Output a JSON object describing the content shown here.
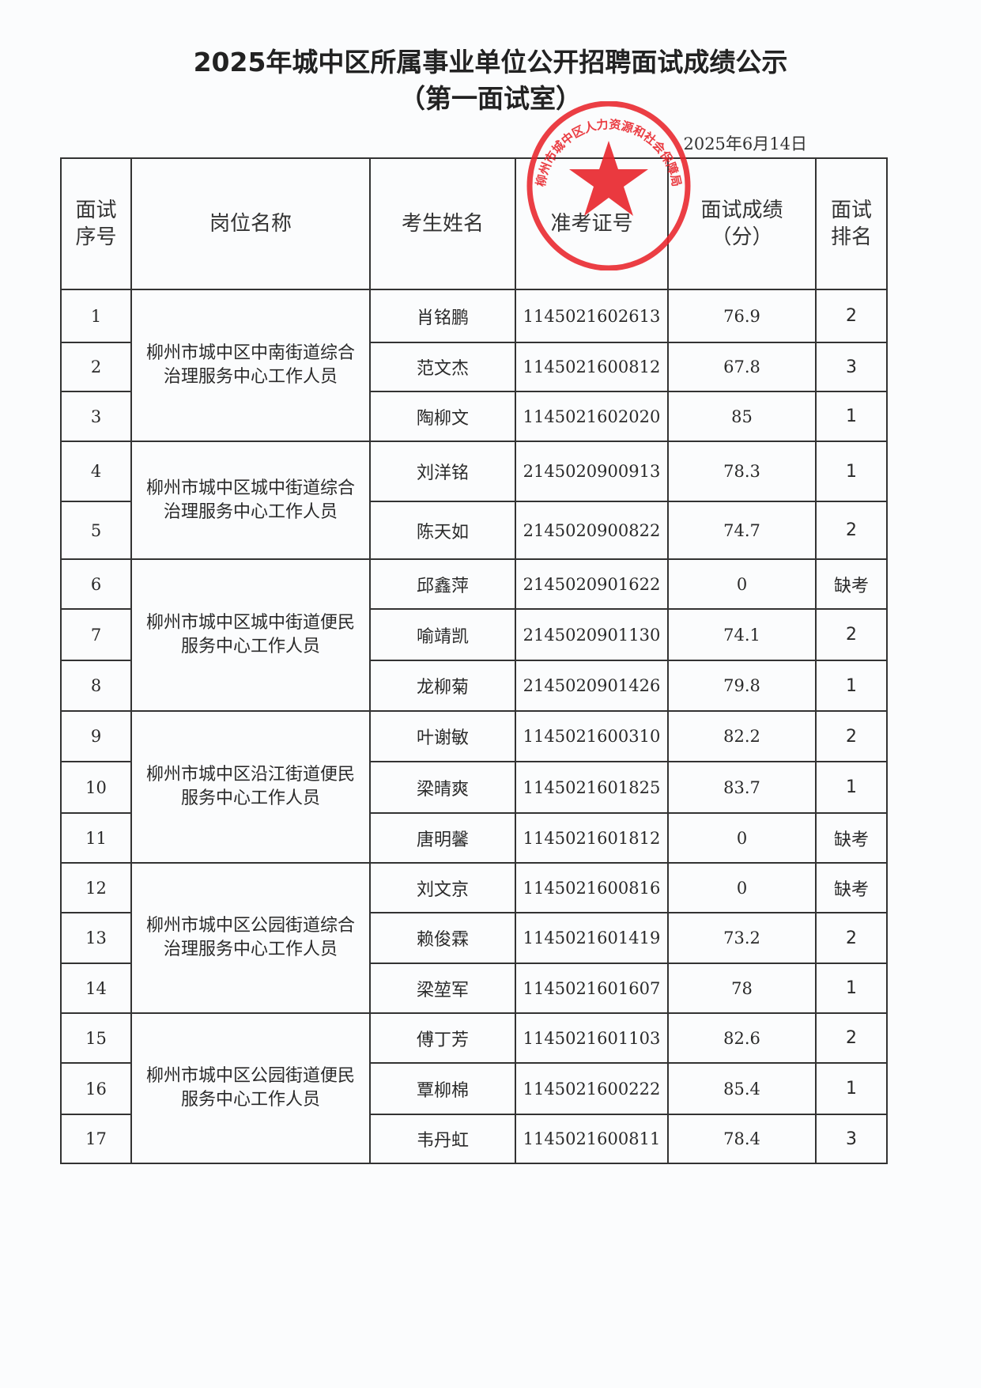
{
  "title": "2025年城中区所属事业单位公开招聘面试成绩公示",
  "subtitle": "（第一面试室）",
  "date": "2025年6月14日",
  "stamp": {
    "text": "柳州市城中区人力资源和社会保障局",
    "color": "#e8232a"
  },
  "headers": [
    "面试序号",
    "岗位名称",
    "考生姓名",
    "准考证号",
    "面试成绩（分）",
    "面试排名"
  ],
  "header_lines": {
    "seq": [
      "面试",
      "序号"
    ],
    "score": [
      "面试成绩",
      "（分）"
    ],
    "rank": [
      "面试",
      "排名"
    ]
  },
  "groups": [
    {
      "post": "柳州市城中区中南街道综合治理服务中心工作人员",
      "rows": [
        {
          "seq": "1",
          "name": "肖铭鹏",
          "id": "1145021602613",
          "score": "76.9",
          "rank": "2"
        },
        {
          "seq": "2",
          "name": "范文杰",
          "id": "1145021600812",
          "score": "67.8",
          "rank": "3"
        },
        {
          "seq": "3",
          "name": "陶柳文",
          "id": "1145021602020",
          "score": "85",
          "rank": "1"
        }
      ]
    },
    {
      "post": "柳州市城中区城中街道综合治理服务中心工作人员",
      "rows": [
        {
          "seq": "4",
          "name": "刘洋铭",
          "id": "2145020900913",
          "score": "78.3",
          "rank": "1"
        },
        {
          "seq": "5",
          "name": "陈天如",
          "id": "2145020900822",
          "score": "74.7",
          "rank": "2"
        }
      ]
    },
    {
      "post": "柳州市城中区城中街道便民服务中心工作人员",
      "rows": [
        {
          "seq": "6",
          "name": "邱鑫萍",
          "id": "2145020901622",
          "score": "0",
          "rank": "缺考"
        },
        {
          "seq": "7",
          "name": "喻靖凯",
          "id": "2145020901130",
          "score": "74.1",
          "rank": "2"
        },
        {
          "seq": "8",
          "name": "龙柳菊",
          "id": "2145020901426",
          "score": "79.8",
          "rank": "1"
        }
      ]
    },
    {
      "post": "柳州市城中区沿江街道便民服务中心工作人员",
      "rows": [
        {
          "seq": "9",
          "name": "叶谢敏",
          "id": "1145021600310",
          "score": "82.2",
          "rank": "2"
        },
        {
          "seq": "10",
          "name": "梁晴爽",
          "id": "1145021601825",
          "score": "83.7",
          "rank": "1"
        },
        {
          "seq": "11",
          "name": "唐明馨",
          "id": "1145021601812",
          "score": "0",
          "rank": "缺考"
        }
      ]
    },
    {
      "post": "柳州市城中区公园街道综合治理服务中心工作人员",
      "rows": [
        {
          "seq": "12",
          "name": "刘文京",
          "id": "1145021600816",
          "score": "0",
          "rank": "缺考"
        },
        {
          "seq": "13",
          "name": "赖俊霖",
          "id": "1145021601419",
          "score": "73.2",
          "rank": "2"
        },
        {
          "seq": "14",
          "name": "梁堃军",
          "id": "1145021601607",
          "score": "78",
          "rank": "1"
        }
      ]
    },
    {
      "post": "柳州市城中区公园街道便民服务中心工作人员",
      "rows": [
        {
          "seq": "15",
          "name": "傅丁芳",
          "id": "1145021601103",
          "score": "82.6",
          "rank": "2"
        },
        {
          "seq": "16",
          "name": "覃柳棉",
          "id": "1145021600222",
          "score": "85.4",
          "rank": "1"
        },
        {
          "seq": "17",
          "name": "韦丹虹",
          "id": "1145021600811",
          "score": "78.4",
          "rank": "3"
        }
      ]
    }
  ]
}
